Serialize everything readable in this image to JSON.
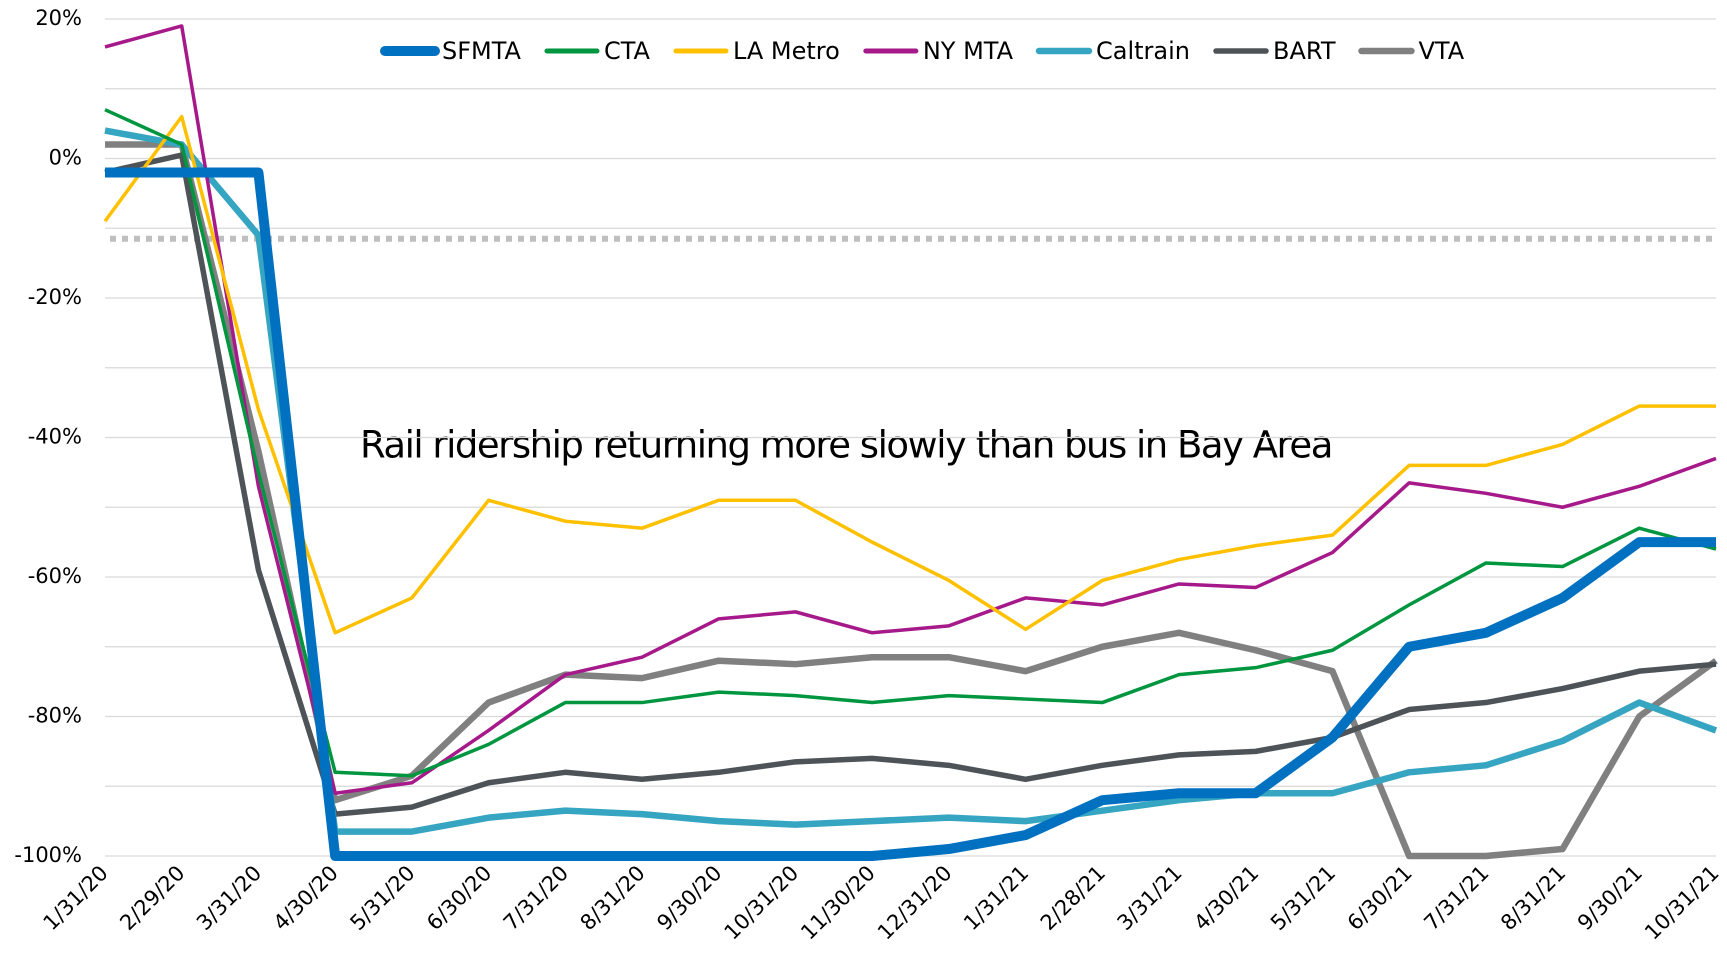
{
  "chart_data": {
    "type": "line",
    "annotation": "Rail ridership returning more slowly than bus in Bay Area",
    "categories": [
      "1/31/20",
      "2/29/20",
      "3/31/20",
      "4/30/20",
      "5/31/20",
      "6/30/20",
      "7/31/20",
      "8/31/20",
      "9/30/20",
      "10/31/20",
      "11/30/20",
      "12/31/20",
      "1/31/21",
      "2/28/21",
      "3/31/21",
      "4/30/21",
      "5/31/21",
      "6/30/21",
      "7/31/21",
      "8/31/21",
      "9/30/21",
      "10/31/21"
    ],
    "series": [
      {
        "name": "SFMTA",
        "color": "#0070c0",
        "line_width": 10,
        "values": [
          -2,
          -2,
          -2,
          -100,
          -100,
          -100,
          -100,
          -100,
          -100,
          -100,
          -100,
          -99,
          -97,
          -92,
          -91,
          -91,
          -83,
          -70,
          -68,
          -63,
          -55,
          -55
        ]
      },
      {
        "name": "CTA",
        "color": "#00953f",
        "line_width": 3.5,
        "values": [
          7,
          2,
          -45,
          -88,
          -88.5,
          -84,
          -78,
          -78,
          -76.5,
          -77,
          -78,
          -77,
          -77.5,
          -78,
          -74,
          -73,
          -70.5,
          -64,
          -58,
          -58.5,
          -53,
          -56
        ]
      },
      {
        "name": "LA Metro",
        "color": "#ffc000",
        "line_width": 3.5,
        "values": [
          -9,
          6,
          -36,
          -68,
          -63,
          -49,
          -52,
          -53,
          -49,
          -49,
          -55,
          -60.5,
          -67.5,
          -60.5,
          -57.5,
          -55.5,
          -54,
          -44,
          -44,
          -41,
          -35.5,
          -35.5
        ]
      },
      {
        "name": "NY MTA",
        "color": "#a6198a",
        "line_width": 3.5,
        "values": [
          16,
          19,
          -47,
          -91,
          -89.5,
          -82,
          -74,
          -71.5,
          -66,
          -65,
          -68,
          -67,
          -63,
          -64,
          -61,
          -61.5,
          -56.5,
          -46.5,
          -48,
          -50,
          -47,
          -43
        ]
      },
      {
        "name": "Caltrain",
        "color": "#36a5c1",
        "line_width": 6.5,
        "values": [
          4,
          2,
          -11,
          -96.5,
          -96.5,
          -94.5,
          -93.5,
          -94,
          -95,
          -95.5,
          -95,
          -94.5,
          -95,
          -93.5,
          -92,
          -91,
          -91,
          -88,
          -87,
          -83.5,
          -78,
          -82
        ]
      },
      {
        "name": "BART",
        "color": "#4d5357",
        "line_width": 5.5,
        "values": [
          -2,
          0.5,
          -59,
          -94,
          -93,
          -89.5,
          -88,
          -89,
          -88,
          -86.5,
          -86,
          -87,
          -89,
          -87,
          -85.5,
          -85,
          -83,
          -79,
          -78,
          -76,
          -73.5,
          -72.5
        ]
      },
      {
        "name": "VTA",
        "color": "#808080",
        "line_width": 6.5,
        "values": [
          2,
          2,
          -42,
          -92,
          -88.5,
          -78,
          -74,
          -74.5,
          -72,
          -72.5,
          -71.5,
          -71.5,
          -73.5,
          -70,
          -68,
          -70.5,
          -73.5,
          -100,
          -100,
          -99,
          -80,
          -72
        ]
      }
    ],
    "reference_line": -11.5,
    "ylim": [
      -100,
      20
    ],
    "yticks": [
      {
        "value": -100,
        "label": "-100%"
      },
      {
        "value": -80,
        "label": "-80%"
      },
      {
        "value": -60,
        "label": "-60%"
      },
      {
        "value": -40,
        "label": "-40%"
      },
      {
        "value": -20,
        "label": "-20%"
      },
      {
        "value": 0,
        "label": "0%"
      },
      {
        "value": 20,
        "label": "20%"
      }
    ],
    "minor_yticks": [
      -90,
      -70,
      -50,
      -30,
      -10,
      10
    ],
    "grid": true,
    "legend": "top"
  }
}
